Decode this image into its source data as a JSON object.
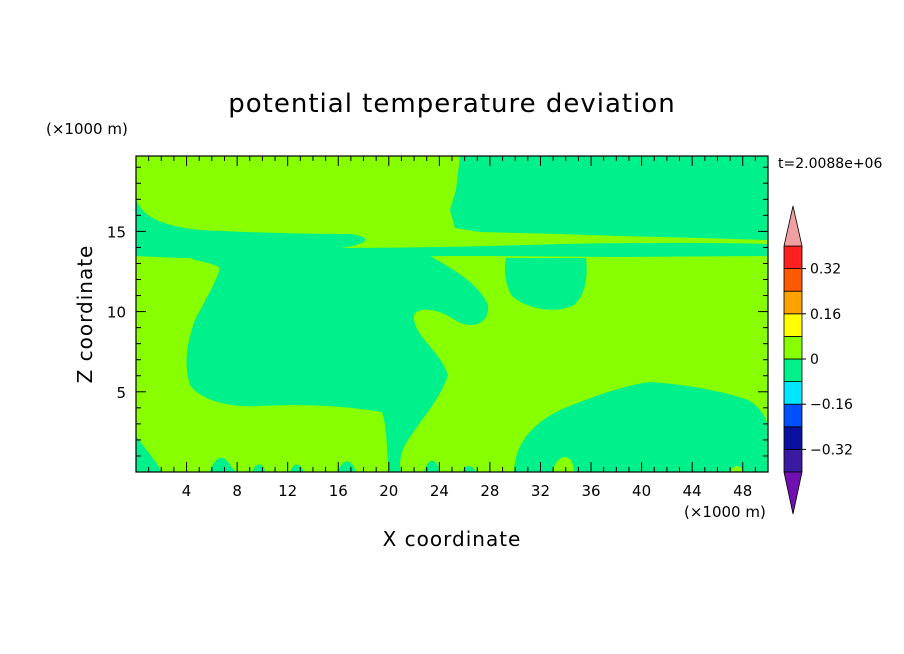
{
  "chart_data": {
    "type": "heatmap",
    "title": "potential temperature deviation",
    "xlabel": "X coordinate",
    "ylabel": "Z coordinate",
    "x_unit": "(×1000 m)",
    "y_unit": "(×1000 m)",
    "time_label": "t=2.0088e+06",
    "xlim": [
      0,
      50
    ],
    "ylim": [
      0,
      19.7
    ],
    "x_ticks": [
      4,
      8,
      12,
      16,
      20,
      24,
      28,
      32,
      36,
      40,
      44,
      48
    ],
    "y_ticks": [
      5,
      10,
      15
    ],
    "colorbar": {
      "levels": [
        -0.4,
        -0.32,
        -0.24,
        -0.16,
        -0.08,
        0,
        0.08,
        0.16,
        0.24,
        0.32,
        0.4
      ],
      "labels": [
        {
          "value": 0.32,
          "text": "0.32"
        },
        {
          "value": 0.16,
          "text": "0.16"
        },
        {
          "value": 0,
          "text": "0"
        },
        {
          "value": -0.16,
          "text": "−0.16"
        },
        {
          "value": -0.32,
          "text": "−0.32"
        }
      ],
      "colors": [
        "#3a1aa0",
        "#0a10a0",
        "#0050ff",
        "#00e6ff",
        "#00f08c",
        "#88ff00",
        "#ffff00",
        "#ffa200",
        "#ff5a00",
        "#ff2020"
      ],
      "over_color": "#f0a0a0",
      "under_color": "#7010b0"
    },
    "background_level_color": "#88ff00",
    "negative_level_color": "#00f08c",
    "regions_note": "Field mostly in [0,0.08) band with patches in [-0.08,0) band"
  }
}
